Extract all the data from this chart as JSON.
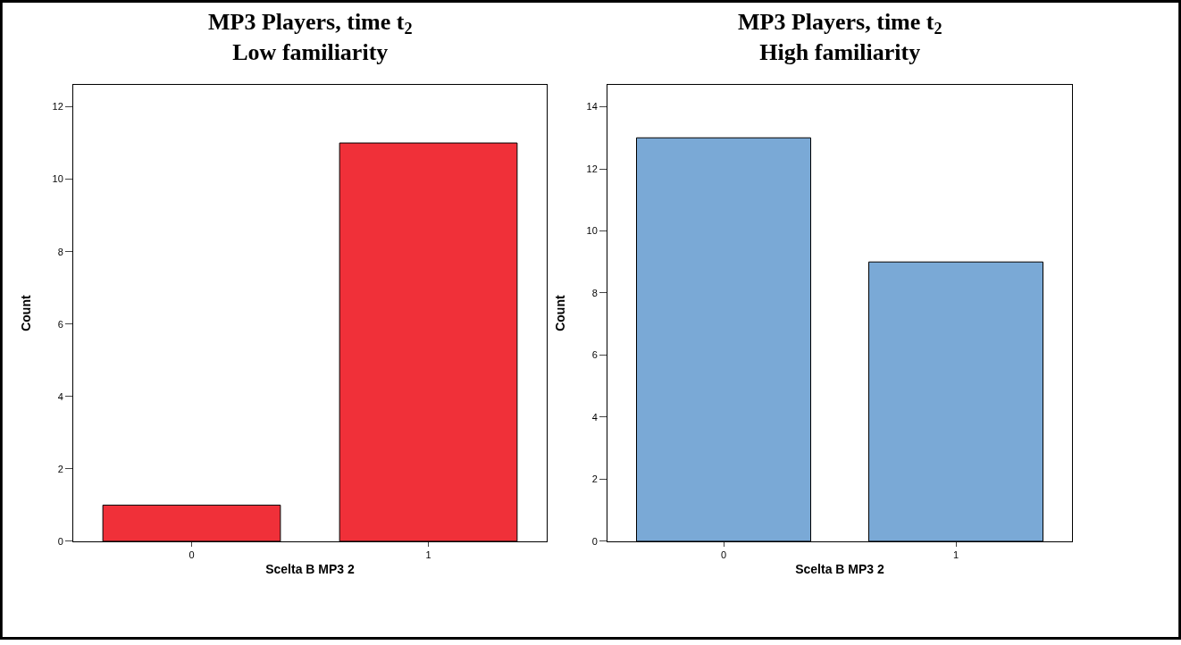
{
  "chart_data": [
    {
      "type": "bar",
      "title": "MP3 Players, time t$_{2}$",
      "subtitle": "Low familiarity",
      "xlabel": "Scelta B MP3 2",
      "ylabel": "Count",
      "categories": [
        "0",
        "1"
      ],
      "values": [
        1,
        11
      ],
      "color": "#f03039",
      "ylim": [
        0,
        12.6
      ],
      "yticks": [
        0,
        2,
        4,
        6,
        8,
        10,
        12
      ]
    },
    {
      "type": "bar",
      "title": "MP3 Players, time t$_{2}$",
      "subtitle": "High familiarity",
      "xlabel": "Scelta B MP3 2",
      "ylabel": "Count",
      "categories": [
        "0",
        "1"
      ],
      "values": [
        13,
        9
      ],
      "color": "#7aa9d6",
      "ylim": [
        0,
        14.7
      ],
      "yticks": [
        0,
        2,
        4,
        6,
        8,
        10,
        12,
        14
      ]
    }
  ]
}
